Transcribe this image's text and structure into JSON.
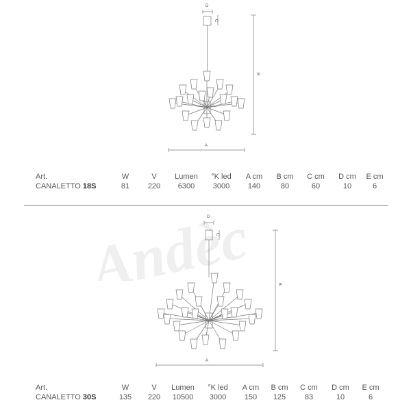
{
  "watermark": "Andèc",
  "dimension_letters": {
    "a": "A",
    "b": "B",
    "c": "C",
    "d": "D"
  },
  "headers": [
    "Art.",
    "W",
    "V",
    "Lumen",
    "°K led",
    "A cm",
    "B cm",
    "C cm",
    "D cm",
    "E cm"
  ],
  "products": [
    {
      "prefix": "CANALETTO ",
      "model": "18S",
      "values": [
        "81",
        "220",
        "6300",
        "3000",
        "140",
        "80",
        "60",
        "10",
        "6"
      ]
    },
    {
      "prefix": "CANALETTO ",
      "model": "30S",
      "values": [
        "135",
        "220",
        "10500",
        "3000",
        "150",
        "125",
        "83",
        "10",
        "6"
      ]
    }
  ]
}
